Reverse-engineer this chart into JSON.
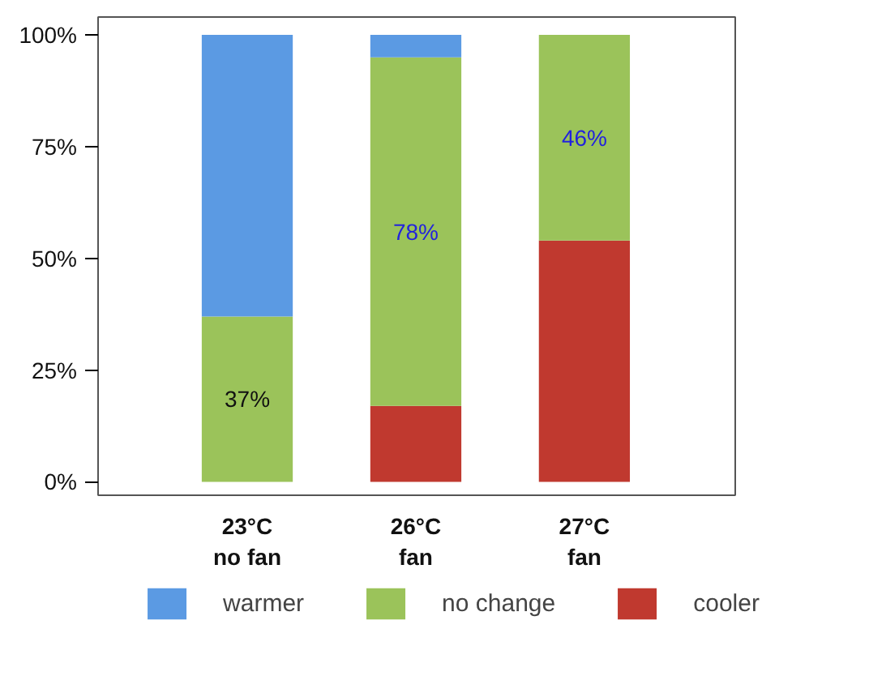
{
  "chart_data": {
    "type": "bar",
    "stacked": true,
    "categories": [
      "23°C\nno fan",
      "26°C\nfan",
      "27°C\nfan"
    ],
    "series": [
      {
        "name": "cooler",
        "color": "#c0392f",
        "values": [
          0,
          17,
          54
        ]
      },
      {
        "name": "no change",
        "color": "#9bc35a",
        "values": [
          37,
          78,
          46
        ],
        "value_labels": [
          "37%",
          "78%",
          "46%"
        ]
      },
      {
        "name": "warmer",
        "color": "#5b9ae3",
        "values": [
          63,
          5,
          0
        ]
      }
    ],
    "ylim": [
      -3,
      104
    ],
    "yticks": [
      {
        "value": 0,
        "label": "0%"
      },
      {
        "value": 25,
        "label": "25%"
      },
      {
        "value": 50,
        "label": "50%"
      },
      {
        "value": 75,
        "label": "75%"
      },
      {
        "value": 100,
        "label": "100%"
      }
    ],
    "grid": false,
    "legend": "bottom"
  }
}
